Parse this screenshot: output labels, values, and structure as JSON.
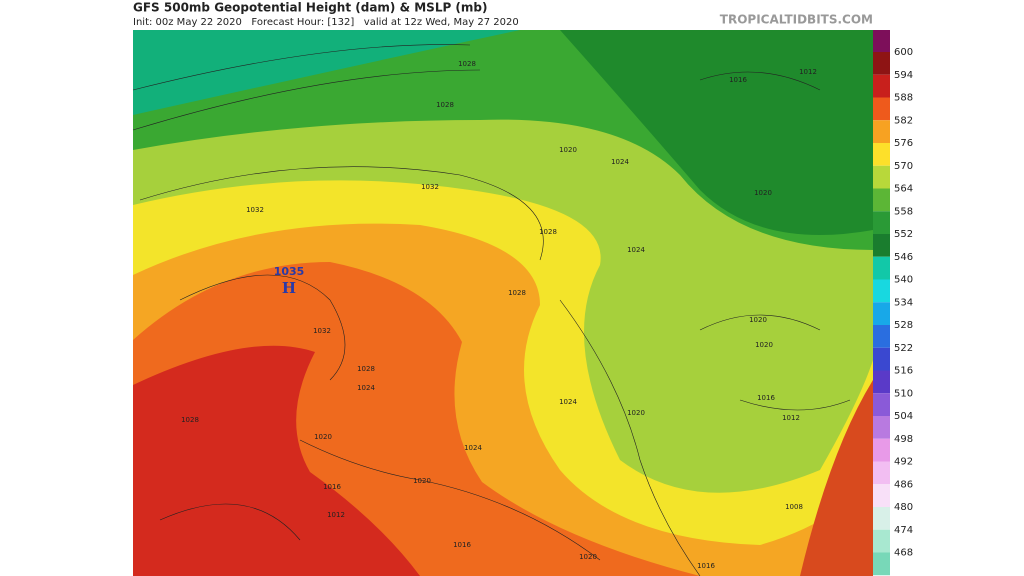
{
  "header": {
    "title": "GFS 500mb Geopotential Height (dam) & MSLP (mb)",
    "subtitle": "Init: 00z May 22 2020   Forecast Hour: [132]   valid at 12z Wed, May 27 2020",
    "watermark": "TROPICALTIDBITS.COM"
  },
  "colorbar": {
    "labels": [
      "600",
      "594",
      "588",
      "582",
      "576",
      "570",
      "564",
      "558",
      "552",
      "546",
      "540",
      "534",
      "528",
      "522",
      "516",
      "510",
      "504",
      "498",
      "492",
      "486",
      "480",
      "474",
      "468"
    ],
    "colors": [
      "#7d0f5a",
      "#8e1414",
      "#c8201c",
      "#ee5a1c",
      "#f7a222",
      "#fde02a",
      "#b8d83a",
      "#5cb636",
      "#2a9a36",
      "#1a7d2e",
      "#12c8a8",
      "#18d8e0",
      "#18a8e8",
      "#2a6ee0",
      "#3a48d0",
      "#5a3ac8",
      "#8a5ad8",
      "#b87ae0",
      "#e89ae8",
      "#f2bef2",
      "#f8e0f8",
      "#d8f0e8",
      "#a8e8d0",
      "#78d8b8"
    ]
  },
  "map": {
    "high_label": "H",
    "high_value": "1035",
    "isobars": [
      "1028",
      "1028",
      "1020",
      "1024",
      "1016",
      "1012",
      "1032",
      "1032",
      "1028",
      "1020",
      "1024",
      "1028",
      "1032",
      "1028",
      "1024",
      "1024",
      "1020",
      "1020",
      "1016",
      "1012",
      "1020",
      "1028",
      "1020",
      "1024",
      "1016",
      "1020",
      "1012",
      "1008",
      "1016",
      "1020",
      "1016"
    ]
  }
}
